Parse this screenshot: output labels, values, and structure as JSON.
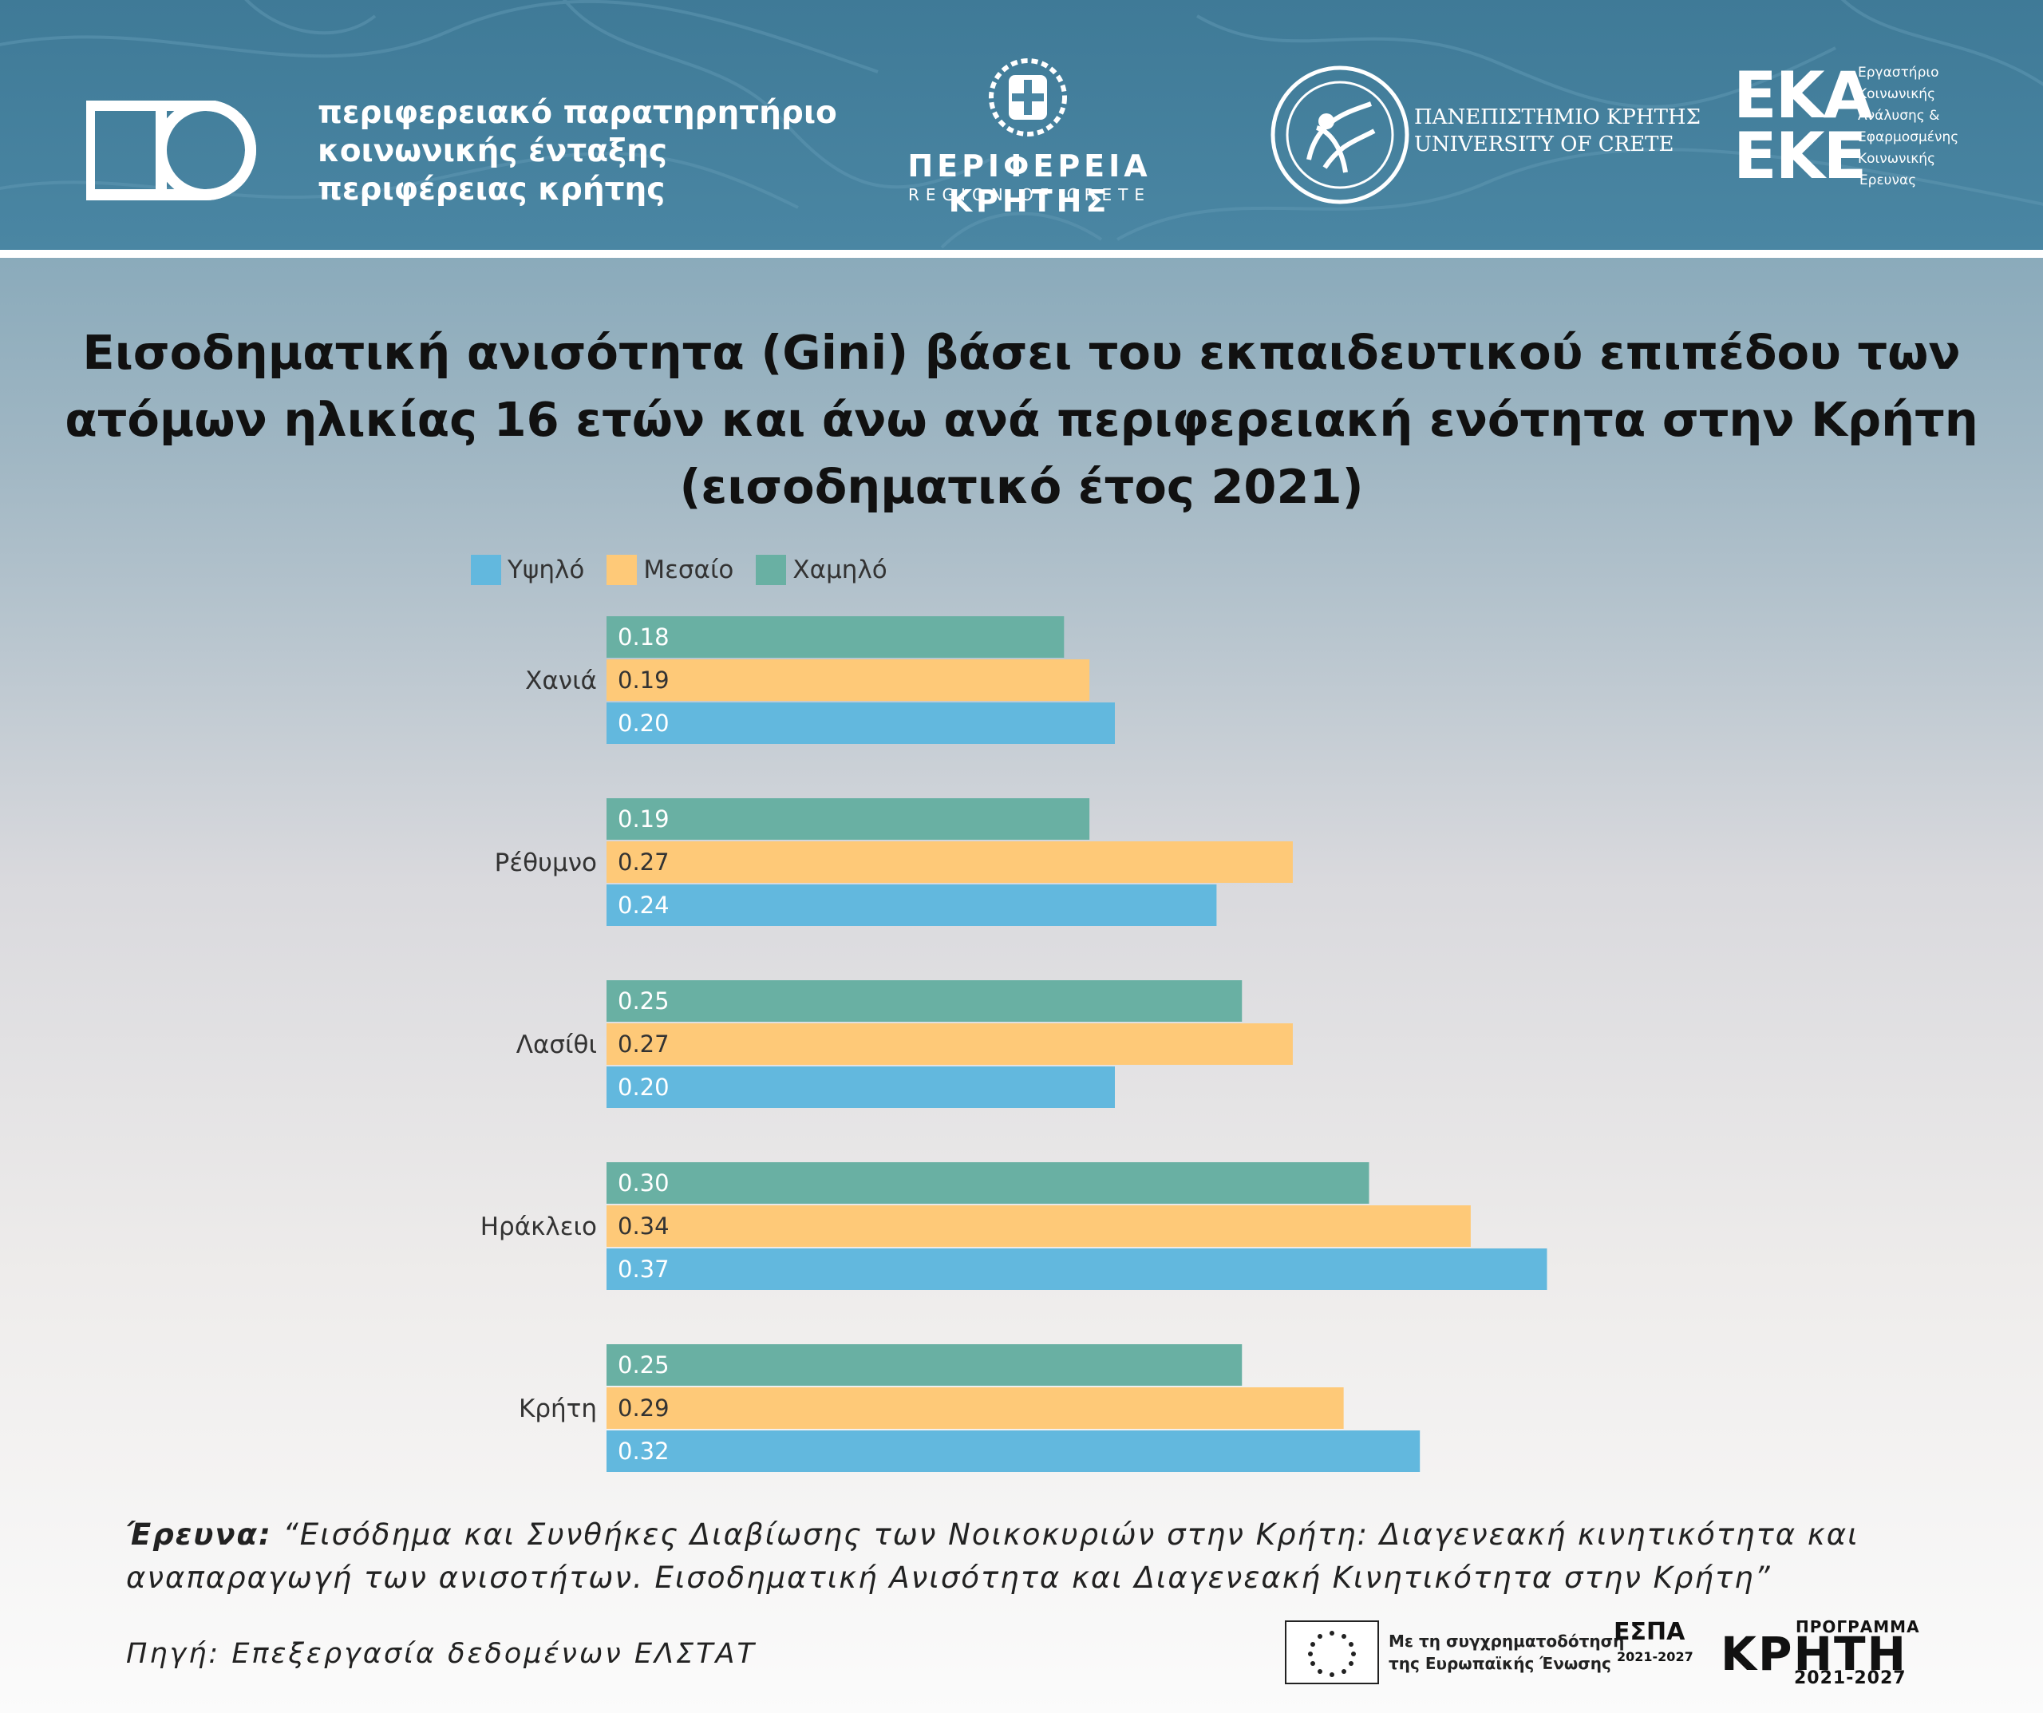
{
  "header": {
    "observatory": {
      "line1": "περιφερειακό παρατηρητήριο",
      "line2": "κοινωνικής ένταξης",
      "line3": "περιφέρειας κρήτης"
    },
    "region": {
      "name": "ΠΕΡΙΦΕΡΕΙΑ ΚΡΗΤΗΣ",
      "sub": "REGION OF CRETE"
    },
    "university": {
      "line1": "ΠΑΝΕΠΙΣΤΗΜΙΟ ΚΡΗΤΗΣ",
      "line2": "UNIVERSITY OF CRETE"
    },
    "eka": {
      "big1": "ΕΚΑ",
      "big2": "ΕΚΕ",
      "small": [
        "Εργαστήριο",
        "Κοινωνικής",
        "Ανάλυσης &",
        "Εφαρμοσμένης",
        "Κοινωνικής",
        "Έρευνας"
      ]
    }
  },
  "title": {
    "line1": "Εισοδηματική ανισότητα (Gini) βάσει του εκπαιδευτικού επιπέδου των",
    "line2": "ατόμων ηλικίας 16 ετών και άνω ανά περιφερειακή ενότητα στην Κρήτη",
    "line3": "(εισοδηματικό έτος 2021)"
  },
  "colors": {
    "high": "#62b8de",
    "medium": "#fec978",
    "low": "#69b0a3"
  },
  "chart_data": {
    "type": "bar",
    "orientation": "horizontal",
    "title": "Εισοδηματική ανισότητα (Gini) βάσει του εκπαιδευτικού επιπέδου των ατόμων ηλικίας 16 ετών και άνω ανά περιφερειακή ενότητα στην Κρήτη (εισοδηματικό έτος 2021)",
    "categories": [
      "Χανιά",
      "Ρέθυμνο",
      "Λασίθι",
      "Ηράκλειο",
      "Κρήτη"
    ],
    "legend_order": [
      "Υψηλό",
      "Μεσαίο",
      "Χαμηλό"
    ],
    "legend_position": "top-left",
    "series": [
      {
        "name": "Υψηλό",
        "color": "#62b8de",
        "values": [
          0.2,
          0.24,
          0.2,
          0.37,
          0.32
        ]
      },
      {
        "name": "Μεσαίο",
        "color": "#fec978",
        "values": [
          0.19,
          0.27,
          0.27,
          0.34,
          0.29
        ]
      },
      {
        "name": "Χαμηλό",
        "color": "#69b0a3",
        "values": [
          0.18,
          0.19,
          0.25,
          0.3,
          0.25
        ]
      }
    ],
    "value_labels": [
      {
        "Χαμηλό": "0.18",
        "Μεσαίο": "0.19",
        "Υψηλό": "0.20"
      },
      {
        "Χαμηλό": "0.19",
        "Μεσαίο": "0.27",
        "Υψηλό": "0.24"
      },
      {
        "Χαμηλό": "0.25",
        "Μεσαίο": "0.27",
        "Υψηλό": "0.20"
      },
      {
        "Χαμηλό": "0.30",
        "Μεσαίο": "0.34",
        "Υψηλό": "0.37"
      },
      {
        "Χαμηλό": "0.25",
        "Μεσαίο": "0.29",
        "Υψηλό": "0.32"
      }
    ],
    "xlabel": "",
    "ylabel": "",
    "grid": false,
    "axes_visible": false
  },
  "footer": {
    "survey_label": "Έρευνα:",
    "survey_text": "“Εισόδημα και Συνθήκες Διαβίωσης των Νοικοκυριών στην Κρήτη: Διαγενεακή κινητικότητα και αναπαραγωγή των ανισοτήτων. Εισοδηματική Ανισότητα και Διαγενεακή  Κινητικότητα στην Κρήτη”",
    "source": "Πηγή: Επεξεργασία δεδομένων ΕΛΣΤΑΤ",
    "cofund_line1": "Με τη συγχρηματοδότηση",
    "cofund_line2": "της Ευρωπαϊκής Ένωσης",
    "espa": "ΕΣΠΑ",
    "espa_years": "2021-2027",
    "program_top": "ΠΡΟΓΡΑΜΜΑ",
    "program_main": "ΚΡΗΤΗ",
    "program_years": "2021-2027"
  }
}
